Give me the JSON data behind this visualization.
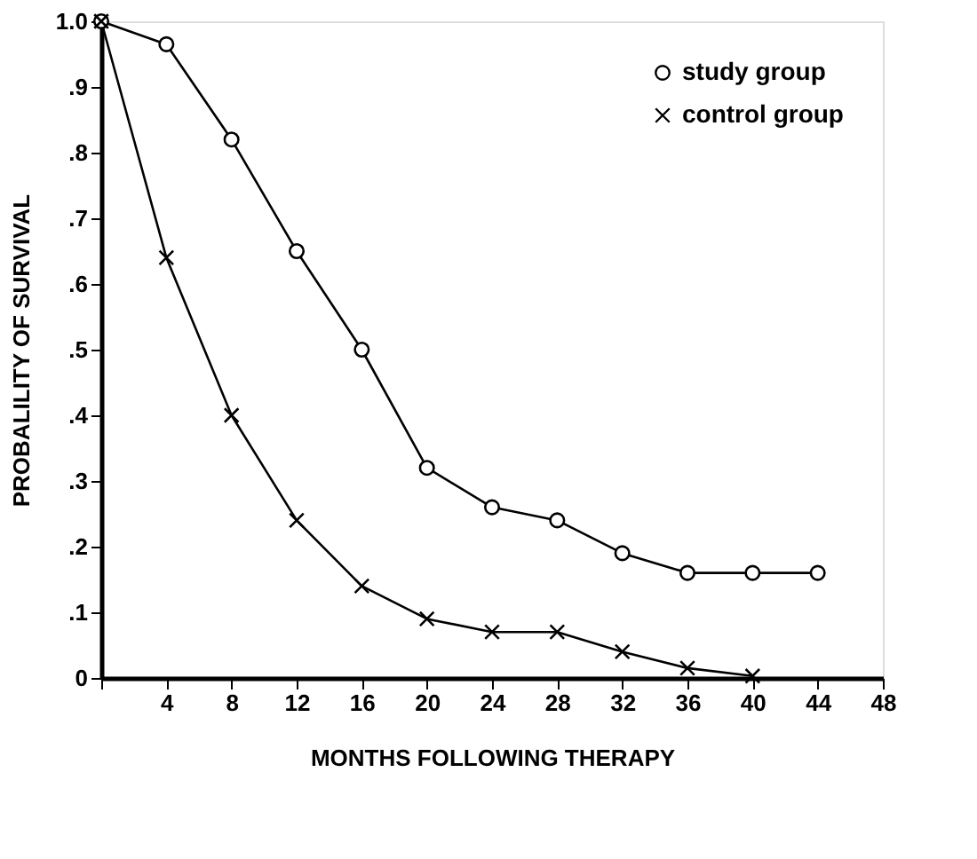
{
  "chart_data": {
    "type": "line",
    "xlabel": "MONTHS FOLLOWING THERAPY",
    "ylabel": "PROBALILITY OF SURVIVAL",
    "x": [
      0,
      4,
      8,
      12,
      16,
      20,
      24,
      28,
      32,
      36,
      40,
      44
    ],
    "series": [
      {
        "name": "study group",
        "color": "#000000",
        "marker": "circle",
        "values": [
          1.0,
          0.965,
          0.82,
          0.65,
          0.5,
          0.32,
          0.26,
          0.24,
          0.19,
          0.16,
          0.16,
          0.16
        ]
      },
      {
        "name": "control group",
        "color": "#000000",
        "marker": "cross",
        "x": [
          0,
          4,
          8,
          12,
          16,
          20,
          24,
          28,
          32,
          36,
          40
        ],
        "values": [
          1.0,
          0.64,
          0.4,
          0.24,
          0.14,
          0.09,
          0.07,
          0.07,
          0.04,
          0.015,
          0.003
        ]
      }
    ],
    "xlim": [
      0,
      48
    ],
    "xticks": [
      {
        "value": 0,
        "label": null
      },
      4,
      8,
      12,
      16,
      20,
      24,
      28,
      32,
      36,
      40,
      44,
      48
    ],
    "ylim": [
      0,
      1.0
    ],
    "yticks": [
      0,
      {
        "value": 0.1,
        "label": ".1"
      },
      {
        "value": 0.2,
        "label": ".2"
      },
      {
        "value": 0.3,
        "label": ".3"
      },
      {
        "value": 0.4,
        "label": ".4"
      },
      {
        "value": 0.5,
        "label": ".5"
      },
      {
        "value": 0.6,
        "label": ".6"
      },
      {
        "value": 0.7,
        "label": ".7"
      },
      {
        "value": 0.8,
        "label": ".8"
      },
      {
        "value": 0.9,
        "label": ".9"
      },
      {
        "value": 1.0,
        "label": "1.0"
      }
    ],
    "legend": "top right",
    "grid": false,
    "line_style": "solid"
  }
}
